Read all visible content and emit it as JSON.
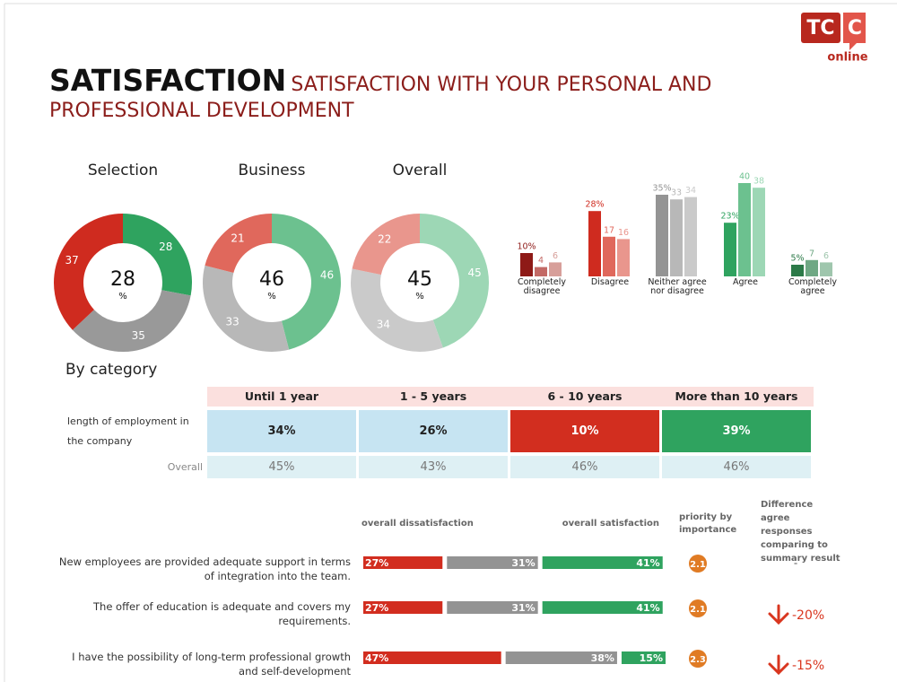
{
  "header": {
    "logo_left": "TC",
    "logo_right": "C",
    "logo_sub": "online",
    "title": "SATISFACTION",
    "subtitle": "SATISFACTION WITH YOUR PERSONAL AND PROFESSIONAL DEVELOPMENT"
  },
  "chart_data": [
    {
      "type": "pie",
      "title": "Selection",
      "values": [
        28,
        35,
        37
      ],
      "colors": [
        "#2fa35f",
        "#999999",
        "#cf2b1f"
      ],
      "center": 28,
      "center_unit": "%"
    },
    {
      "type": "pie",
      "title": "Business",
      "values": [
        46,
        33,
        21
      ],
      "colors": [
        "#6cc18f",
        "#b8b8b8",
        "#e0685c"
      ],
      "center": 46,
      "center_unit": "%"
    },
    {
      "type": "pie",
      "title": "Overall",
      "values": [
        45,
        34,
        22
      ],
      "colors": [
        "#9dd7b5",
        "#cacaca",
        "#e9968d"
      ],
      "center": 45,
      "center_unit": "%"
    },
    {
      "type": "bar",
      "categories": [
        "Completely disagree",
        "Disagree",
        "Neither agree nor disagree",
        "Agree",
        "Completely agree"
      ],
      "series": [
        {
          "colors": [
            "#8e1a17",
            "#cf2b1f",
            "#949494",
            "#2fa35f",
            "#2c7a48"
          ],
          "values": [
            10,
            28,
            35,
            23,
            5
          ],
          "value_labels": [
            "10%",
            "28%",
            "35%",
            "23%",
            "5%"
          ]
        },
        {
          "colors": [
            "#c36a66",
            "#e0685c",
            "#b8b8b8",
            "#6cc18f",
            "#6fa884"
          ],
          "values": [
            4,
            17,
            33,
            40,
            7
          ]
        },
        {
          "colors": [
            "#d79f9a",
            "#e9968d",
            "#cacaca",
            "#9dd7b5",
            "#9fc6ad"
          ],
          "values": [
            6,
            16,
            34,
            38,
            6
          ]
        }
      ]
    }
  ],
  "by_category": {
    "title": "By category",
    "columns": [
      "Until 1 year",
      "1 - 5 years",
      "6 - 10 years",
      "More than 10 years"
    ],
    "rows": [
      {
        "label": "length of employment in the company",
        "values": [
          "34%",
          "26%",
          "10%",
          "39%"
        ],
        "colors": [
          "#c6e4f2",
          "#c6e4f2",
          "#d22e1f",
          "#2fa35f"
        ],
        "text_colors": [
          "#222222",
          "#222222",
          "#ffffff",
          "#ffffff"
        ]
      },
      {
        "label": "Overall",
        "values": [
          "45%",
          "43%",
          "46%",
          "46%"
        ],
        "colors": [
          "#def0f4",
          "#def0f4",
          "#def0f4",
          "#def0f4"
        ],
        "text_colors": [
          "#777777",
          "#777777",
          "#777777",
          "#777777"
        ]
      }
    ]
  },
  "statements": {
    "headers": {
      "dissatisfaction": "overall dissatisfaction",
      "satisfaction": "overall satisfaction",
      "priority": "priority by importance",
      "difference": "Difference agree responses comparing to summary result"
    },
    "colors": [
      "#d22d1f",
      "#939393",
      "#2fa35f"
    ],
    "rows": [
      {
        "text": "New employees are provided adequate support in terms of integration into the team.",
        "values": [
          27,
          31,
          41
        ],
        "value_labels": [
          "27%",
          "31%",
          "41%"
        ],
        "priority": 2.1,
        "difference": "-"
      },
      {
        "text": "The offer of education is adequate and covers my requirements.",
        "values": [
          27,
          31,
          41
        ],
        "value_labels": [
          "27%",
          "31%",
          "41%"
        ],
        "priority": 2.1,
        "difference": "-20%",
        "trend": "down"
      },
      {
        "text": "I have the possibility of long-term professional growth and self-development",
        "values": [
          47,
          38,
          15
        ],
        "value_labels": [
          "47%",
          "38%",
          "15%"
        ],
        "priority": 2.3,
        "difference": "-15%",
        "trend": "down"
      }
    ]
  }
}
